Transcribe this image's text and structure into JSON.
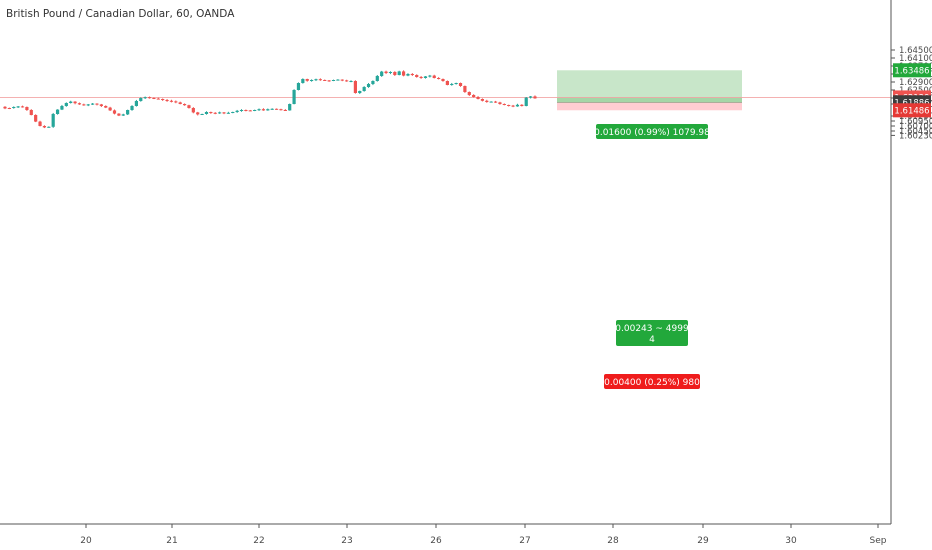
{
  "chart_data": {
    "type": "candlestick",
    "title": "British Pound / Canadian Dollar, 60, OANDA",
    "y_axis": {
      "ticks": [
        "1.64500",
        "1.64100",
        "1.63700",
        "1.63300",
        "1.62900",
        "1.62500",
        "1.62100",
        "1.61800",
        "1.61200",
        "1.60950",
        "1.60700",
        "1.60450",
        "1.60230"
      ]
    },
    "x_axis": {
      "ticks": [
        "20",
        "21",
        "22",
        "23",
        "26",
        "27",
        "28",
        "29",
        "30",
        "Sep"
      ]
    },
    "price_labels": {
      "target": "1.63486",
      "current": "1.62129",
      "countdown": "26:35",
      "entry": "1.61886",
      "stop": "1.61486"
    },
    "position": {
      "type": "long",
      "target_label": "0.01600 (0.99%) 1079.98",
      "middle_label_line1": "0.00243 ~ 4999",
      "middle_label_line2": "4",
      "stop_label": "0.00400 (0.25%) 980"
    },
    "ohlc_path": [
      [
        1.6166,
        1.6158
      ],
      [
        1.616,
        1.6157
      ],
      [
        1.616,
        1.6165
      ],
      [
        1.6165,
        1.6168
      ],
      [
        1.6168,
        1.6165
      ],
      [
        1.6165,
        1.615
      ],
      [
        1.615,
        1.6125
      ],
      [
        1.6125,
        1.6092
      ],
      [
        1.6092,
        1.607
      ],
      [
        1.607,
        1.6063
      ],
      [
        1.6063,
        1.6066
      ],
      [
        1.6066,
        1.613
      ],
      [
        1.613,
        1.6152
      ],
      [
        1.6152,
        1.617
      ],
      [
        1.617,
        1.6185
      ],
      [
        1.6185,
        1.6192
      ],
      [
        1.6192,
        1.6184
      ],
      [
        1.6184,
        1.6178
      ],
      [
        1.6178,
        1.6174
      ],
      [
        1.6174,
        1.6178
      ],
      [
        1.6178,
        1.6182
      ],
      [
        1.6182,
        1.6178
      ],
      [
        1.6178,
        1.617
      ],
      [
        1.617,
        1.6162
      ],
      [
        1.6162,
        1.6148
      ],
      [
        1.6148,
        1.6132
      ],
      [
        1.6132,
        1.6122
      ],
      [
        1.6122,
        1.6128
      ],
      [
        1.6128,
        1.615
      ],
      [
        1.615,
        1.617
      ],
      [
        1.617,
        1.6195
      ],
      [
        1.6195,
        1.621
      ],
      [
        1.621,
        1.6214
      ],
      [
        1.6214,
        1.621
      ],
      [
        1.621,
        1.6207
      ],
      [
        1.6207,
        1.6205
      ],
      [
        1.6205,
        1.62
      ],
      [
        1.62,
        1.6196
      ],
      [
        1.6196,
        1.6193
      ],
      [
        1.6193,
        1.6188
      ],
      [
        1.6188,
        1.618
      ],
      [
        1.618,
        1.6174
      ],
      [
        1.6174,
        1.616
      ],
      [
        1.616,
        1.6138
      ],
      [
        1.6138,
        1.6128
      ],
      [
        1.6128,
        1.613
      ],
      [
        1.613,
        1.614
      ],
      [
        1.614,
        1.6136
      ],
      [
        1.6136,
        1.6134
      ],
      [
        1.6134,
        1.6138
      ],
      [
        1.6138,
        1.6134
      ],
      [
        1.6134,
        1.6136
      ],
      [
        1.6136,
        1.614
      ],
      [
        1.614,
        1.6146
      ],
      [
        1.6146,
        1.615
      ],
      [
        1.615,
        1.6148
      ],
      [
        1.6148,
        1.6146
      ],
      [
        1.6146,
        1.615
      ],
      [
        1.615,
        1.6154
      ],
      [
        1.6154,
        1.6148
      ],
      [
        1.6148,
        1.6154
      ],
      [
        1.6154,
        1.6156
      ],
      [
        1.6156,
        1.6154
      ],
      [
        1.6154,
        1.615
      ],
      [
        1.615,
        1.6148
      ],
      [
        1.6148,
        1.618
      ],
      [
        1.618,
        1.625
      ],
      [
        1.625,
        1.6285
      ],
      [
        1.6285,
        1.6305
      ],
      [
        1.6305,
        1.6296
      ],
      [
        1.6296,
        1.63
      ],
      [
        1.63,
        1.6304
      ],
      [
        1.6304,
        1.63
      ],
      [
        1.63,
        1.6298
      ],
      [
        1.6298,
        1.6296
      ],
      [
        1.6296,
        1.63
      ],
      [
        1.63,
        1.6302
      ],
      [
        1.6302,
        1.6298
      ],
      [
        1.6298,
        1.6294
      ],
      [
        1.6294,
        1.6295
      ],
      [
        1.6295,
        1.6235
      ],
      [
        1.6235,
        1.6245
      ],
      [
        1.6245,
        1.6265
      ],
      [
        1.6265,
        1.628
      ],
      [
        1.628,
        1.6295
      ],
      [
        1.6295,
        1.632
      ],
      [
        1.632,
        1.6342
      ],
      [
        1.6342,
        1.6335
      ],
      [
        1.6335,
        1.634
      ],
      [
        1.634,
        1.6325
      ],
      [
        1.6325,
        1.6343
      ],
      [
        1.6343,
        1.6322
      ],
      [
        1.6322,
        1.633
      ],
      [
        1.633,
        1.6325
      ],
      [
        1.6325,
        1.6315
      ],
      [
        1.6315,
        1.631
      ],
      [
        1.631,
        1.6318
      ],
      [
        1.6318,
        1.6322
      ],
      [
        1.6322,
        1.631
      ],
      [
        1.631,
        1.6305
      ],
      [
        1.6305,
        1.6295
      ],
      [
        1.6295,
        1.6275
      ],
      [
        1.6275,
        1.628
      ],
      [
        1.628,
        1.6285
      ],
      [
        1.6285,
        1.627
      ],
      [
        1.627,
        1.624
      ],
      [
        1.624,
        1.6225
      ],
      [
        1.6225,
        1.6215
      ],
      [
        1.6215,
        1.6205
      ],
      [
        1.6205,
        1.6196
      ],
      [
        1.6196,
        1.619
      ],
      [
        1.619,
        1.6192
      ],
      [
        1.6192,
        1.6188
      ],
      [
        1.6188,
        1.618
      ],
      [
        1.618,
        1.6175
      ],
      [
        1.6175,
        1.6172
      ],
      [
        1.6172,
        1.6168
      ],
      [
        1.6168,
        1.6176
      ],
      [
        1.6176,
        1.617
      ],
      [
        1.617,
        1.6212
      ],
      [
        1.6212,
        1.6218
      ],
      [
        1.6218,
        1.6208
      ]
    ]
  },
  "colors": {
    "up": "#26a69a",
    "down": "#ef5350",
    "target_zone": "#c8e6c9",
    "entry_band": "#a5d6a7",
    "stop_zone": "#ffcdd2",
    "target_label_bg": "#22a83b",
    "stop_label_bg": "#ef1c1c",
    "axis_text": "#4a4a4a"
  }
}
